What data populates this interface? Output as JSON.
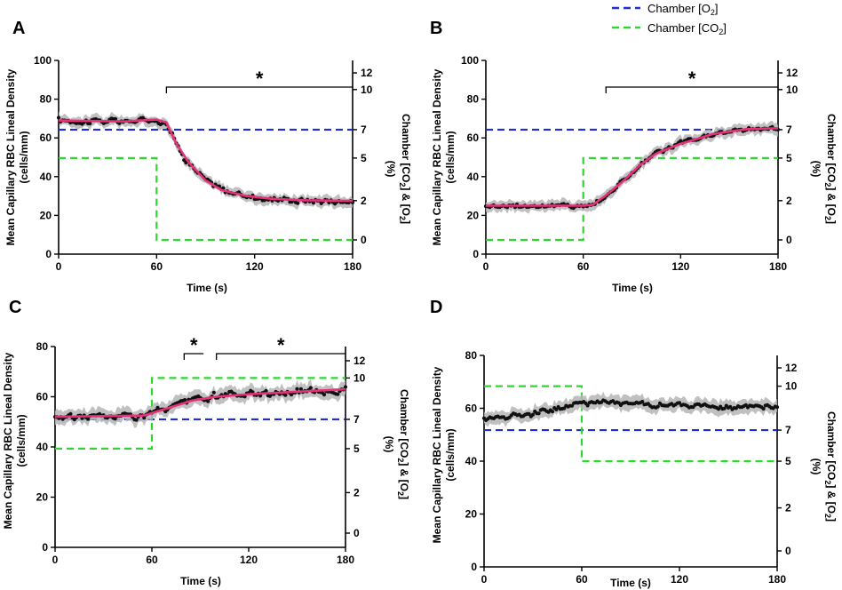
{
  "legend": {
    "o2_base": "Chamber [O",
    "o2_sub": "2",
    "o2_tail": "]",
    "co2_base": "Chamber [CO",
    "co2_sub": "2",
    "co2_tail": "]",
    "o2_color": "#1f2fd8",
    "co2_color": "#2fd62f"
  },
  "colors": {
    "fit": "#e8317a",
    "points": "#111111",
    "band": "#b5b5b5"
  },
  "axis_text": {
    "xlabel": "Time (s)",
    "ylabel_1": "Mean Capillary RBC Lineal Density",
    "ylabel_2": "(cells/mm)",
    "y2_a": "Chamber [CO",
    "y2_sub1": "2",
    "y2_b": "] & [O",
    "y2_sub2": "2",
    "y2_c": "]",
    "y2_pct": "(%)"
  },
  "chart_data": [
    {
      "panel": "A",
      "type": "line",
      "xlim": [
        0,
        180
      ],
      "xticks": [
        0,
        60,
        120,
        180
      ],
      "ylim": [
        0,
        100
      ],
      "yticks": [
        0,
        20,
        40,
        60,
        80,
        100
      ],
      "y2ticks": [
        0,
        2,
        5,
        7,
        10,
        12
      ],
      "o2": 7,
      "co2": [
        [
          0,
          5
        ],
        [
          60,
          5
        ],
        [
          60,
          0
        ],
        [
          180,
          0
        ]
      ],
      "fit": [
        [
          0,
          69
        ],
        [
          40,
          68.5
        ],
        [
          60,
          69.5
        ],
        [
          66,
          68
        ],
        [
          72,
          57
        ],
        [
          80,
          47
        ],
        [
          90,
          38
        ],
        [
          100,
          33
        ],
        [
          115,
          30
        ],
        [
          130,
          28.6
        ],
        [
          150,
          27.8
        ],
        [
          180,
          27.5
        ]
      ],
      "noise": 2.2,
      "band": 3,
      "sig": [
        {
          "x1": 66,
          "x2": 180,
          "label": "*"
        }
      ]
    },
    {
      "panel": "B",
      "type": "line",
      "xlim": [
        0,
        180
      ],
      "xticks": [
        0,
        60,
        120,
        180
      ],
      "ylim": [
        0,
        100
      ],
      "yticks": [
        0,
        20,
        40,
        60,
        80,
        100
      ],
      "y2ticks": [
        0,
        2,
        5,
        7,
        10,
        12
      ],
      "o2": 7,
      "co2": [
        [
          0,
          0
        ],
        [
          60,
          0
        ],
        [
          60,
          5
        ],
        [
          180,
          5
        ]
      ],
      "fit": [
        [
          0,
          25
        ],
        [
          60,
          25
        ],
        [
          66,
          25.5
        ],
        [
          75,
          31
        ],
        [
          85,
          38
        ],
        [
          95,
          46
        ],
        [
          105,
          52
        ],
        [
          120,
          57
        ],
        [
          140,
          62
        ],
        [
          160,
          64.5
        ],
        [
          180,
          65
        ]
      ],
      "noise": 1.6,
      "band": 3,
      "sig": [
        {
          "x1": 74,
          "x2": 180,
          "label": "*"
        }
      ]
    },
    {
      "panel": "C",
      "type": "line",
      "xlim": [
        0,
        180
      ],
      "xticks": [
        0,
        60,
        120,
        180
      ],
      "ylim": [
        0,
        80
      ],
      "yticks": [
        0,
        20,
        40,
        60,
        80
      ],
      "y2ticks": [
        0,
        2,
        5,
        7,
        10,
        12
      ],
      "o2": 7,
      "co2": [
        [
          0,
          5
        ],
        [
          60,
          5
        ],
        [
          60,
          10
        ],
        [
          180,
          10
        ]
      ],
      "fit": [
        [
          0,
          52
        ],
        [
          30,
          52.3
        ],
        [
          55,
          52.5
        ],
        [
          70,
          55.5
        ],
        [
          85,
          58.5
        ],
        [
          100,
          60
        ],
        [
          120,
          61
        ],
        [
          150,
          62
        ],
        [
          180,
          63
        ]
      ],
      "noise": 1.8,
      "band": 3,
      "sig": [
        {
          "x1": 80,
          "x2": 92,
          "label": "*"
        },
        {
          "x1": 100,
          "x2": 180,
          "label": "*"
        }
      ]
    },
    {
      "panel": "D",
      "type": "line",
      "xlim": [
        0,
        180
      ],
      "xticks": [
        0,
        60,
        120,
        180
      ],
      "ylim": [
        0,
        80
      ],
      "yticks": [
        0,
        20,
        40,
        60,
        80
      ],
      "y2ticks": [
        0,
        2,
        5,
        7,
        10,
        12
      ],
      "o2": 7,
      "co2": [
        [
          0,
          10
        ],
        [
          60,
          10
        ],
        [
          60,
          5
        ],
        [
          180,
          5
        ]
      ],
      "fit": [
        [
          0,
          56
        ],
        [
          20,
          57.5
        ],
        [
          40,
          59.5
        ],
        [
          60,
          62
        ],
        [
          75,
          62.5
        ],
        [
          100,
          61.5
        ],
        [
          140,
          60.5
        ],
        [
          180,
          60
        ]
      ],
      "noise": 1.3,
      "band": 2.8,
      "nofit": true,
      "sig": []
    }
  ]
}
